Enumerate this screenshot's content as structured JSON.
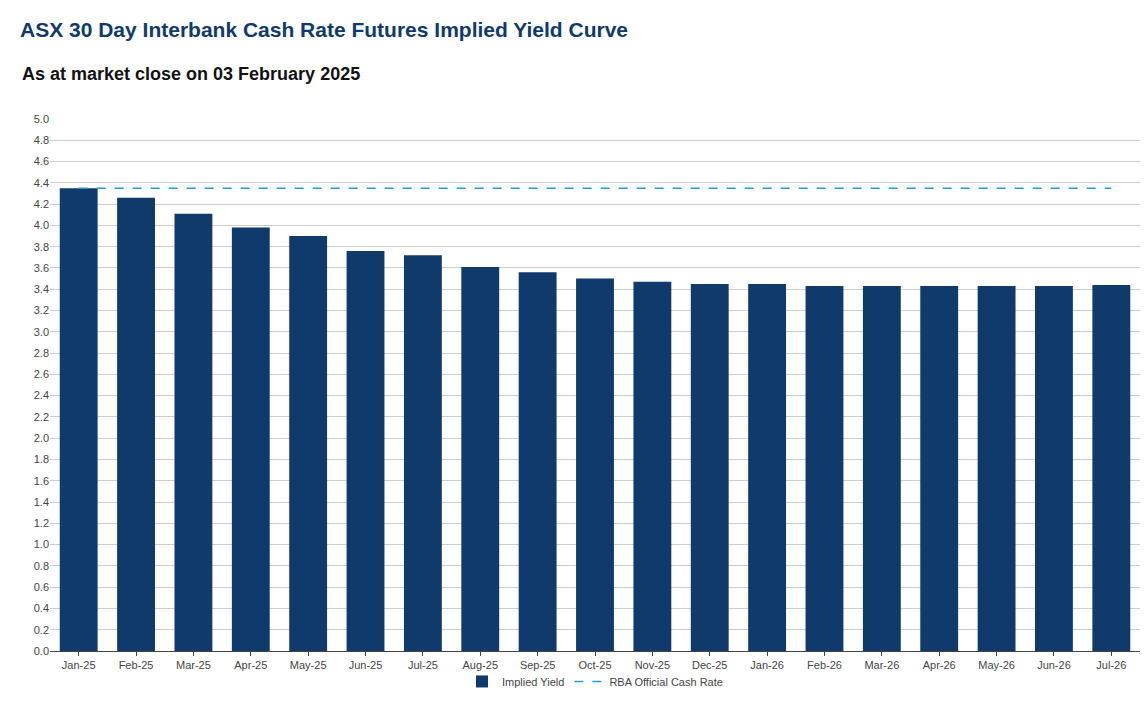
{
  "chart_data": {
    "type": "bar",
    "title": "ASX 30 Day Interbank Cash Rate Futures Implied Yield Curve",
    "subtitle": "As at market close on 03 February 2025",
    "categories": [
      "Jan-25",
      "Feb-25",
      "Mar-25",
      "Apr-25",
      "May-25",
      "Jun-25",
      "Jul-25",
      "Aug-25",
      "Sep-25",
      "Oct-25",
      "Nov-25",
      "Dec-25",
      "Jan-26",
      "Feb-26",
      "Mar-26",
      "Apr-26",
      "May-26",
      "Jun-26",
      "Jul-26"
    ],
    "series": [
      {
        "name": "Implied Yield",
        "type": "bar",
        "color": "#0f3a6b",
        "values": [
          4.35,
          4.26,
          4.11,
          3.98,
          3.9,
          3.76,
          3.72,
          3.61,
          3.56,
          3.5,
          3.47,
          3.45,
          3.45,
          3.43,
          3.43,
          3.43,
          3.43,
          3.43,
          3.44
        ]
      },
      {
        "name": "RBA Official Cash Rate",
        "type": "line",
        "line_style": "dashed",
        "color": "#1a9fd9",
        "values": [
          4.35,
          4.35,
          4.35,
          4.35,
          4.35,
          4.35,
          4.35,
          4.35,
          4.35,
          4.35,
          4.35,
          4.35,
          4.35,
          4.35,
          4.35,
          4.35,
          4.35,
          4.35,
          4.35
        ]
      }
    ],
    "ylim": [
      0,
      5
    ],
    "yticks": [
      {
        "value": 0,
        "label": "0.0"
      },
      {
        "value": 0.2,
        "label": "0.2"
      },
      {
        "value": 0.4,
        "label": "0.4"
      },
      {
        "value": 0.6,
        "label": "0.6"
      },
      {
        "value": 0.8,
        "label": "0.8"
      },
      {
        "value": 1,
        "label": "1.0"
      },
      {
        "value": 1.2,
        "label": "1.2"
      },
      {
        "value": 1.4,
        "label": "1.4"
      },
      {
        "value": 1.6,
        "label": "1.6"
      },
      {
        "value": 1.8,
        "label": "1.8"
      },
      {
        "value": 2,
        "label": "2.0"
      },
      {
        "value": 2.2,
        "label": "2.2"
      },
      {
        "value": 2.4,
        "label": "2.4"
      },
      {
        "value": 2.6,
        "label": "2.6"
      },
      {
        "value": 2.8,
        "label": "2.8"
      },
      {
        "value": 3,
        "label": "3.0"
      },
      {
        "value": 3.2,
        "label": "3.2"
      },
      {
        "value": 3.4,
        "label": "3.4"
      },
      {
        "value": 3.6,
        "label": "3.6"
      },
      {
        "value": 3.8,
        "label": "3.8"
      },
      {
        "value": 4,
        "label": "4.0"
      },
      {
        "value": 4.2,
        "label": "4.2"
      },
      {
        "value": 4.4,
        "label": "4.4"
      },
      {
        "value": 4.6,
        "label": "4.6"
      },
      {
        "value": 4.8,
        "label": "4.8"
      },
      {
        "value": 5,
        "label": "5.0"
      }
    ],
    "grid": true,
    "legend": "bottom"
  }
}
